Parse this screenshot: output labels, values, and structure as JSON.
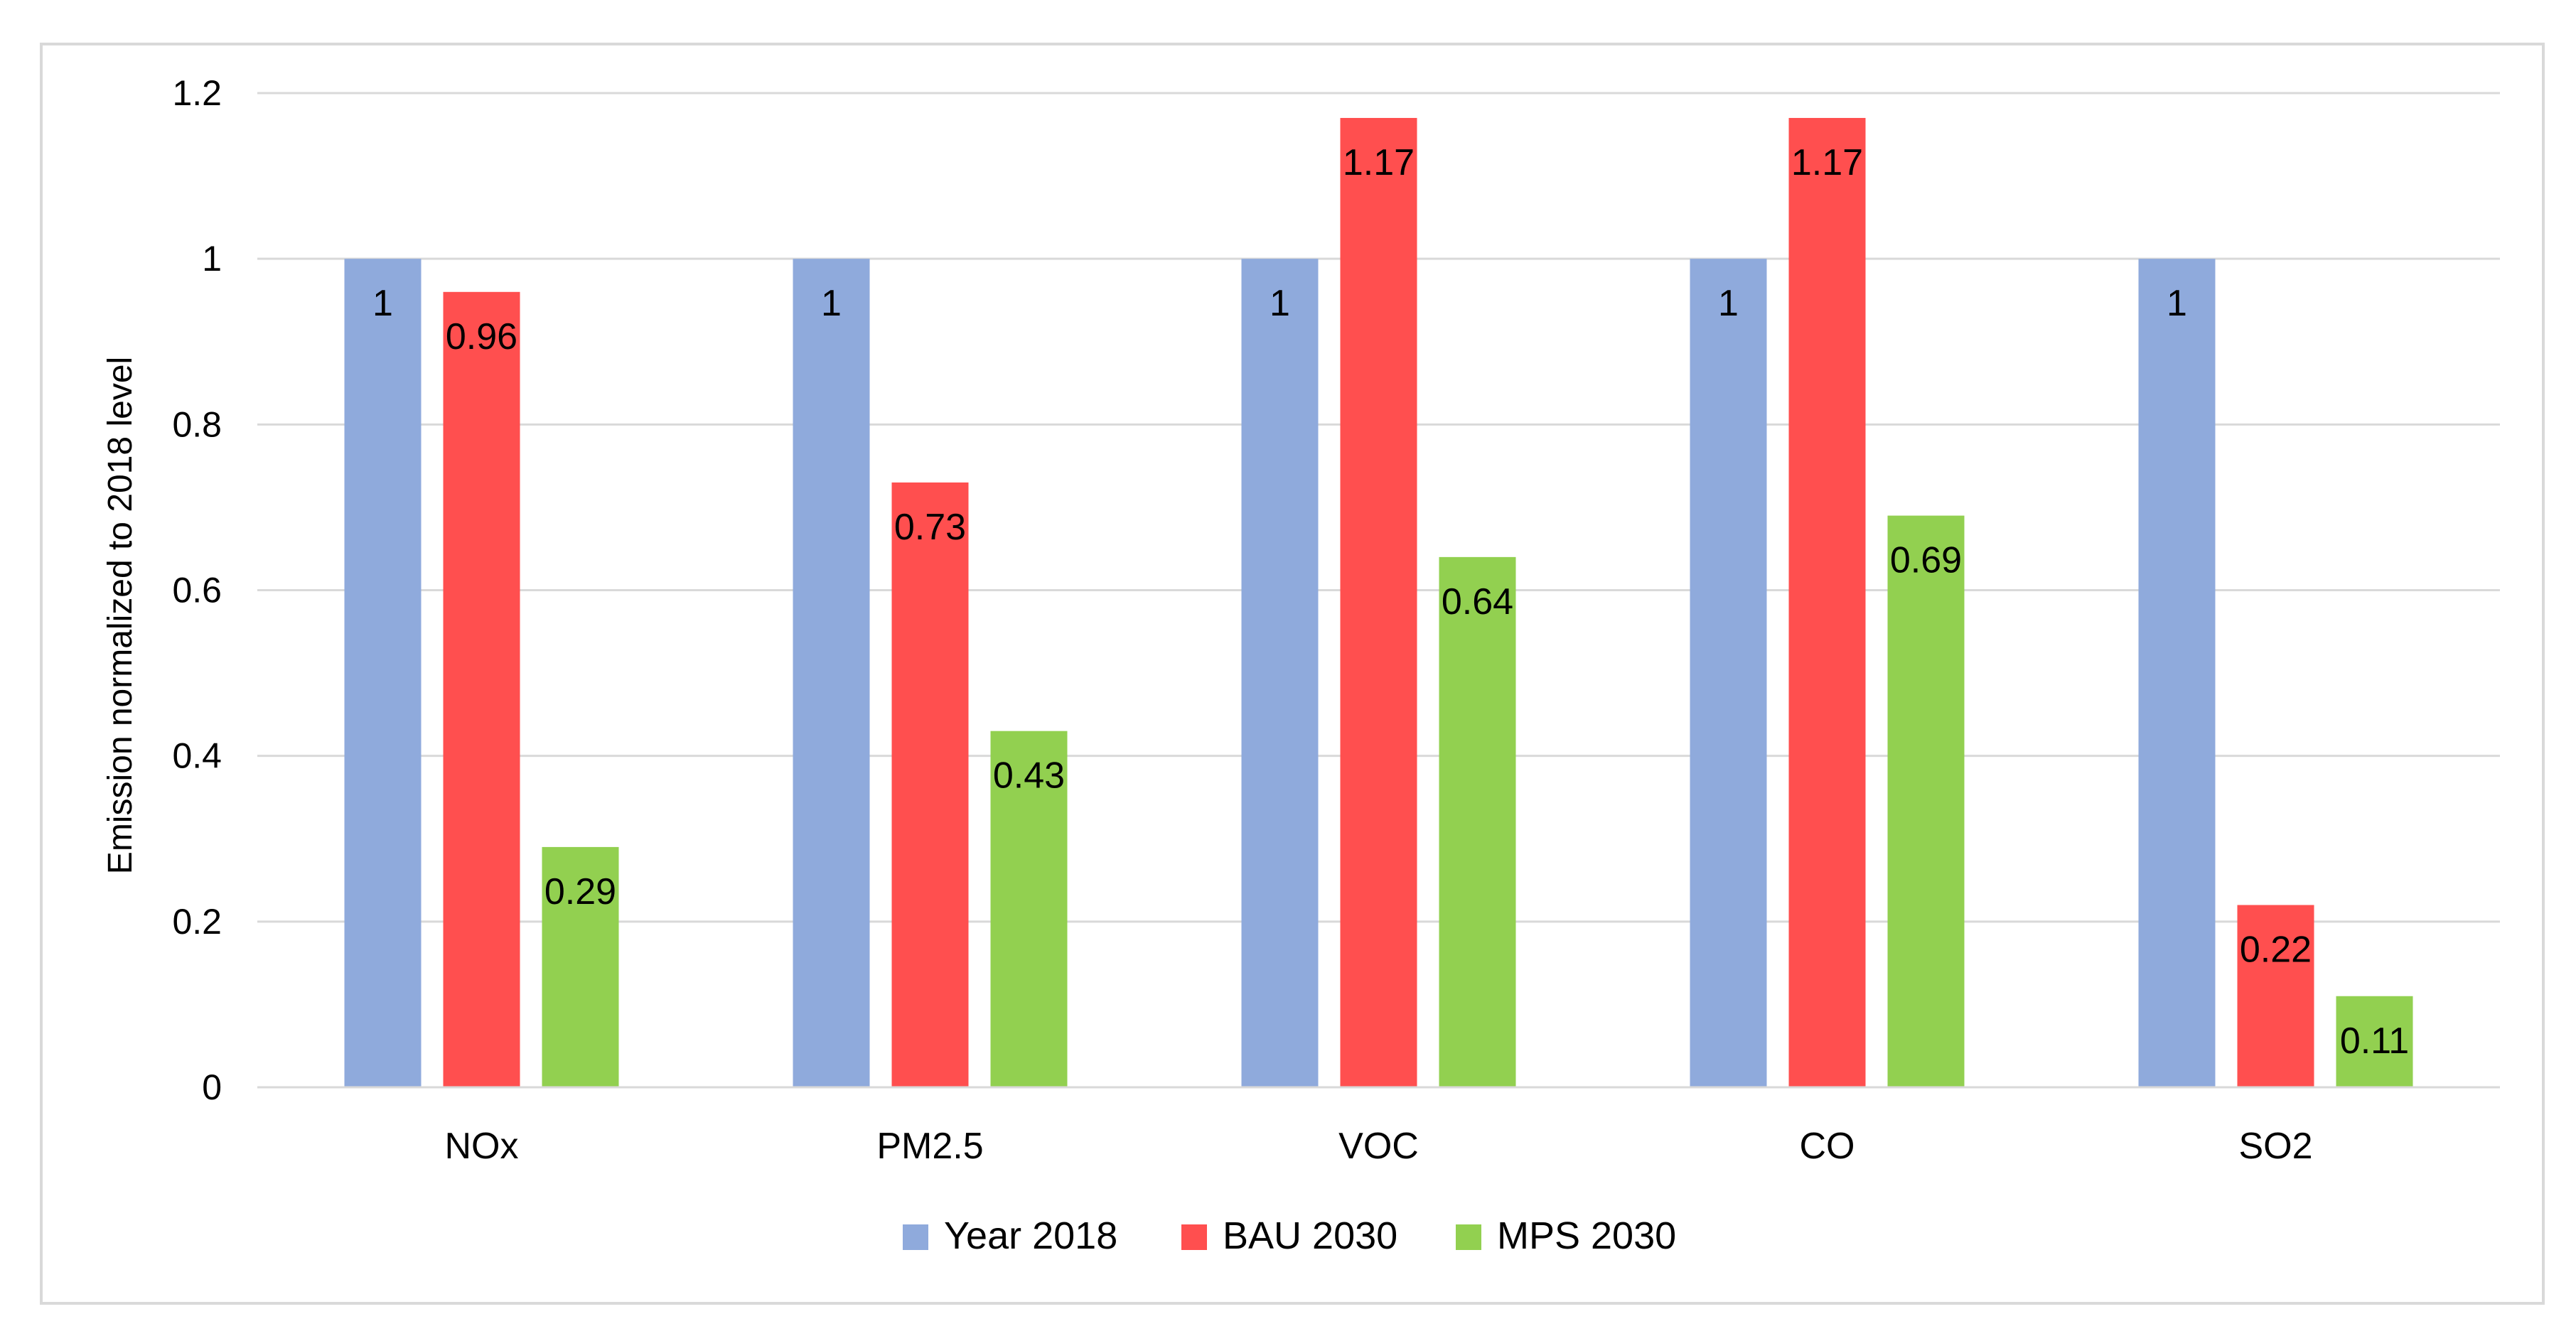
{
  "chart_data": {
    "type": "bar",
    "title": "",
    "xlabel": "",
    "ylabel": "Emission normalized to 2018 level",
    "ylim": [
      0,
      1.2
    ],
    "yticks": [
      "0",
      "0.2",
      "0.4",
      "0.6",
      "0.8",
      "1",
      "1.2"
    ],
    "categories": [
      "NOx",
      "PM2.5",
      "VOC",
      "CO",
      "SO2"
    ],
    "series": [
      {
        "name": "Year 2018",
        "color": "#8FAADC",
        "values": [
          1,
          1,
          1,
          1,
          1
        ],
        "labels": [
          "1",
          "1",
          "1",
          "1",
          "1"
        ]
      },
      {
        "name": "BAU 2030",
        "color": "#FF4F4F",
        "values": [
          0.96,
          0.73,
          1.17,
          1.17,
          0.22
        ],
        "labels": [
          "0.96",
          "0.73",
          "1.17",
          "1.17",
          "0.22"
        ]
      },
      {
        "name": "MPS 2030",
        "color": "#92D050",
        "values": [
          0.29,
          0.43,
          0.64,
          0.69,
          0.11
        ],
        "labels": [
          "0.29",
          "0.43",
          "0.64",
          "0.69",
          "0.11"
        ]
      }
    ],
    "grid": true,
    "legend_position": "bottom"
  },
  "colors": {
    "gridline": "#D9D9D9",
    "frame": "#D9D9D9",
    "text": "#000000"
  }
}
